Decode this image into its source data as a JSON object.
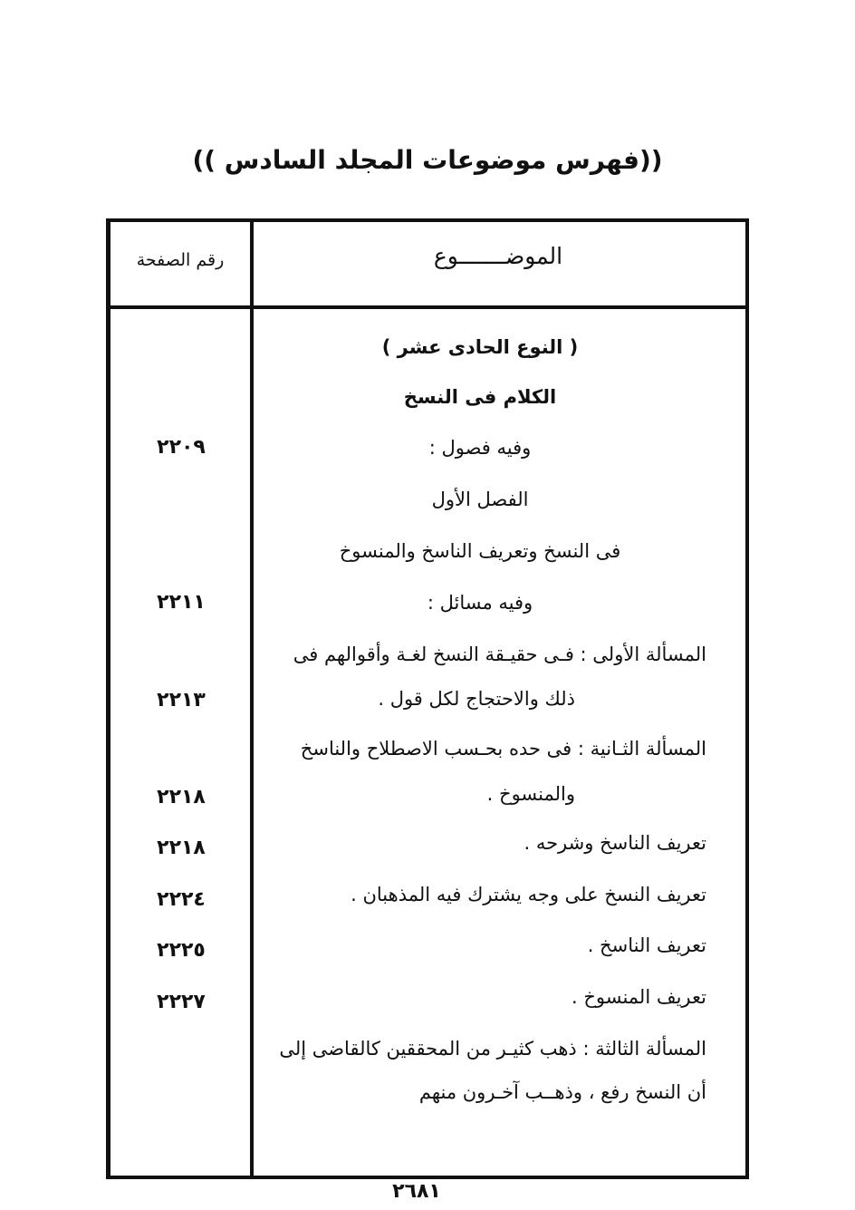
{
  "title": "((فهرس موضوعات المجلد السادس ))",
  "table": {
    "header_topic": "الموضـــــــوع",
    "header_page": "رقم الصفحة"
  },
  "entries": [
    {
      "text": "( النوع الحادى عشر )",
      "page": ""
    },
    {
      "text": "الكلام فى النسخ",
      "page": ""
    },
    {
      "text": "وفيه فصول :",
      "page": "٢٢٠٩"
    },
    {
      "text": "الفصل الأول",
      "page": ""
    },
    {
      "text": "فى النسخ وتعريف الناسخ والمنسوخ",
      "page": ""
    },
    {
      "text": "وفيه مسائل :",
      "page": "٢٢١١"
    },
    {
      "text": "المسألة الأولى : فـى حقيـقة النسخ لغـة وأقوالهم فى",
      "text2": "ذلك والاحتجاج لكل قول .",
      "page": "٢٢١٣"
    },
    {
      "text": "المسألة الثـانية : فى حده بحـسب الاصطلاح والناسخ",
      "text2": "والمنسوخ .",
      "page": "٢٢١٨"
    },
    {
      "text": "تعريف الناسخ وشرحه .",
      "page": "٢٢١٨"
    },
    {
      "text": "تعريف النسخ على وجه يشترك فيه المذهبان .",
      "page": "٢٢٢٤"
    },
    {
      "text": "تعريف الناسخ .",
      "page": "٢٢٢٥"
    },
    {
      "text": "تعريف المنسوخ .",
      "page": "٢٢٢٧"
    },
    {
      "text": "المسألة الثالثة : ذهب كثيـر من المحققين كالقاضى إلى",
      "text2": "أن النسخ رفع ، وذهــب آخـرون منهم",
      "page": ""
    }
  ],
  "footer": {
    "page_number": "٢٦٨١"
  }
}
